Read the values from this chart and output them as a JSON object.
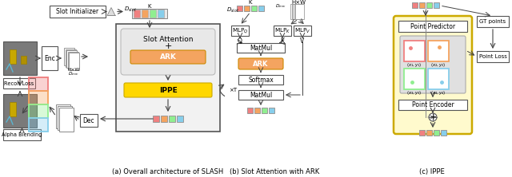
{
  "bg_color": "#ffffff",
  "caption_a": "(a) Overall architecture of SLASH",
  "caption_b": "(b) Slot Attention with ARK",
  "caption_c": "(c) IPPE",
  "slot_colors": [
    "#f08080",
    "#f4a460",
    "#90ee90",
    "#87ceeb"
  ],
  "ark_color": "#f4a460",
  "ippe_color": "#ffd700",
  "ark_border": "#cc8800",
  "ippe_border": "#ccaa00"
}
